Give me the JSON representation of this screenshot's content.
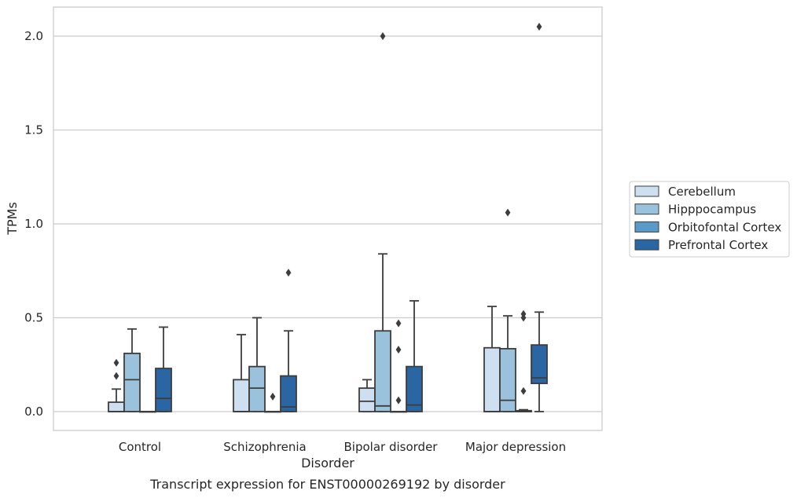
{
  "caption": "Transcript expression for ENST00000269192 by disorder",
  "chart_data": {
    "type": "box",
    "xlabel": "Disorder",
    "ylabel": "TPMs",
    "ylim": [
      -0.1,
      2.16
    ],
    "yticks": [
      0.0,
      0.5,
      1.0,
      1.5,
      2.0
    ],
    "ytick_labels": [
      "0.0",
      "0.5",
      "1.0",
      "1.5",
      "2.0"
    ],
    "grid": "horizontal",
    "legend_position": "right",
    "categories": [
      "Control",
      "Schizophrenia",
      "Bipolar disorder",
      "Major depression"
    ],
    "series": [
      {
        "name": "Cerebellum",
        "color": "#cddff0",
        "boxes": [
          {
            "whisker_low": 0.0,
            "q1": 0.0,
            "median": 0.0,
            "q3": 0.05,
            "whisker_high": 0.12,
            "outliers": [
              0.19,
              0.26
            ]
          },
          {
            "whisker_low": 0.0,
            "q1": 0.0,
            "median": 0.0,
            "q3": 0.17,
            "whisker_high": 0.41,
            "outliers": []
          },
          {
            "whisker_low": 0.0,
            "q1": 0.0,
            "median": 0.055,
            "q3": 0.125,
            "whisker_high": 0.17,
            "outliers": []
          },
          {
            "whisker_low": 0.0,
            "q1": 0.0,
            "median": 0.0,
            "q3": 0.34,
            "whisker_high": 0.56,
            "outliers": []
          }
        ]
      },
      {
        "name": "Hipppocampus",
        "color": "#9ac2dc",
        "boxes": [
          {
            "whisker_low": 0.0,
            "q1": 0.0,
            "median": 0.17,
            "q3": 0.31,
            "whisker_high": 0.44,
            "outliers": []
          },
          {
            "whisker_low": 0.0,
            "q1": 0.0,
            "median": 0.125,
            "q3": 0.24,
            "whisker_high": 0.5,
            "outliers": []
          },
          {
            "whisker_low": 0.0,
            "q1": 0.0,
            "median": 0.03,
            "q3": 0.43,
            "whisker_high": 0.84,
            "outliers": [
              2.0
            ]
          },
          {
            "whisker_low": 0.0,
            "q1": 0.0,
            "median": 0.06,
            "q3": 0.335,
            "whisker_high": 0.51,
            "outliers": [
              1.06
            ]
          }
        ]
      },
      {
        "name": "Orbitofontal Cortex",
        "color": "#5a9ac8",
        "boxes": [
          {
            "whisker_low": 0.0,
            "q1": 0.0,
            "median": 0.0,
            "q3": 0.0,
            "whisker_high": 0.0,
            "outliers": []
          },
          {
            "whisker_low": 0.0,
            "q1": 0.0,
            "median": 0.0,
            "q3": 0.0,
            "whisker_high": 0.0,
            "outliers": [
              0.08
            ]
          },
          {
            "whisker_low": 0.0,
            "q1": 0.0,
            "median": 0.0,
            "q3": 0.0,
            "whisker_high": 0.0,
            "outliers": [
              0.06,
              0.33,
              0.47
            ]
          },
          {
            "whisker_low": 0.0,
            "q1": 0.0,
            "median": 0.0,
            "q3": 0.005,
            "whisker_high": 0.01,
            "outliers": [
              0.11,
              0.5,
              0.52
            ]
          }
        ]
      },
      {
        "name": "Prefrontal Cortex",
        "color": "#2a65a4",
        "boxes": [
          {
            "whisker_low": 0.0,
            "q1": 0.0,
            "median": 0.07,
            "q3": 0.23,
            "whisker_high": 0.45,
            "outliers": []
          },
          {
            "whisker_low": 0.0,
            "q1": 0.0,
            "median": 0.025,
            "q3": 0.19,
            "whisker_high": 0.43,
            "outliers": [
              0.74
            ]
          },
          {
            "whisker_low": 0.0,
            "q1": 0.0,
            "median": 0.035,
            "q3": 0.24,
            "whisker_high": 0.59,
            "outliers": []
          },
          {
            "whisker_low": 0.0,
            "q1": 0.15,
            "median": 0.18,
            "q3": 0.355,
            "whisker_high": 0.53,
            "outliers": [
              2.05
            ]
          }
        ]
      }
    ]
  }
}
